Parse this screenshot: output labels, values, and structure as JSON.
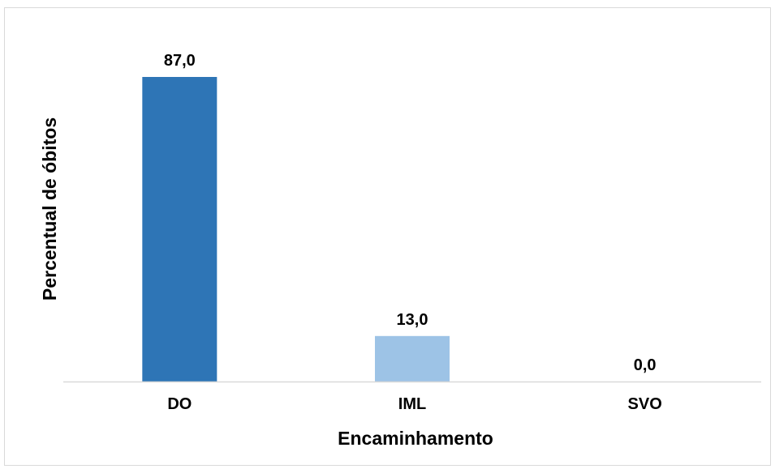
{
  "chart_data": {
    "type": "bar",
    "categories": [
      "DO",
      "IML",
      "SVO"
    ],
    "values": [
      87.0,
      13.0,
      0.0
    ],
    "data_labels": [
      "87,0",
      "13,0",
      "0,0"
    ],
    "title": "",
    "xlabel": "Encaminhamento",
    "ylabel": "Percentual de óbitos",
    "ylim": [
      0,
      87
    ],
    "grid": false,
    "legend": "none",
    "bar_colors": [
      "#2e75b6",
      "#9dc3e6",
      "#9dc3e6"
    ],
    "axis_color": "#d9d9d9"
  }
}
